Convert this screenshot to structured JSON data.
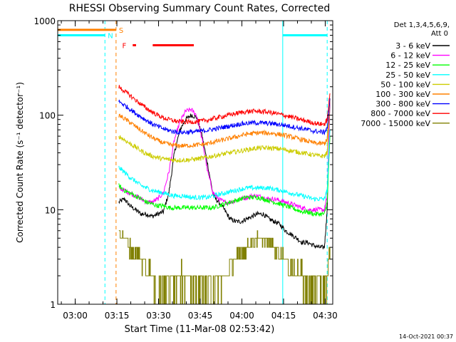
{
  "chart_data": {
    "type": "line",
    "title": "RHESSI Observing Summary Count Rates, Corrected",
    "xlabel": "Start Time (11-Mar-08 02:53:42)",
    "ylabel": "Corrected Count Rate (s⁻¹ detector⁻¹)",
    "yscale": "log",
    "ylim": [
      1,
      1000
    ],
    "xlim_minutes_from_start": [
      0,
      99
    ],
    "x_unit": "minutes after 02:53:42",
    "x_ticks": [
      {
        "label": "03:00",
        "t": 6.3
      },
      {
        "label": "03:15",
        "t": 21.3
      },
      {
        "label": "03:30",
        "t": 36.3
      },
      {
        "label": "03:45",
        "t": 51.3
      },
      {
        "label": "04:00",
        "t": 66.3
      },
      {
        "label": "04:15",
        "t": 81.3
      },
      {
        "label": "04:30",
        "t": 96.3
      }
    ],
    "y_ticks": [
      {
        "label": "1",
        "v": 1
      },
      {
        "label": "10",
        "v": 10
      },
      {
        "label": "100",
        "v": 100
      },
      {
        "label": "1000",
        "v": 1000
      }
    ],
    "legend": {
      "placement": "top-right",
      "header": [
        "Det 1,3,4,5,6,9,",
        "Att 0"
      ]
    },
    "series": [
      {
        "name": "3 - 6 keV",
        "color": "#000000",
        "x": [
          22,
          24,
          26,
          28,
          30,
          32,
          34,
          36,
          38,
          40,
          42,
          44,
          46,
          48,
          50,
          52,
          54,
          56,
          58,
          60,
          62,
          64,
          66,
          68,
          70,
          72,
          74,
          76,
          78,
          80,
          82,
          84,
          86,
          88,
          90,
          92,
          94,
          96,
          97,
          98
        ],
        "y": [
          12,
          13,
          11,
          10,
          9,
          9,
          8.5,
          9,
          9.5,
          15,
          40,
          70,
          90,
          100,
          95,
          60,
          30,
          14,
          12,
          10,
          8,
          7.5,
          7.5,
          8,
          8.5,
          9,
          9,
          8,
          7.5,
          7,
          6,
          5.5,
          5,
          4.5,
          4.5,
          4.2,
          4,
          4,
          10,
          150
        ]
      },
      {
        "name": "6 - 12 keV",
        "color": "#ff00ff",
        "x": [
          22,
          24,
          26,
          28,
          30,
          32,
          34,
          36,
          38,
          40,
          42,
          44,
          46,
          48,
          50,
          52,
          54,
          56,
          58,
          60,
          62,
          64,
          66,
          68,
          70,
          72,
          74,
          76,
          78,
          80,
          82,
          84,
          86,
          88,
          90,
          92,
          94,
          96,
          97,
          98
        ],
        "y": [
          17,
          16,
          15,
          14,
          13,
          12,
          12,
          13,
          15,
          25,
          55,
          85,
          110,
          115,
          100,
          55,
          25,
          15,
          13,
          12,
          12,
          12.5,
          13,
          13.5,
          14,
          14,
          13.5,
          13,
          13,
          12.5,
          12,
          11.5,
          11,
          10.5,
          10,
          10,
          10,
          10,
          14,
          150
        ]
      },
      {
        "name": "12 - 25 keV",
        "color": "#00ff00",
        "x": [
          22,
          24,
          26,
          28,
          30,
          32,
          34,
          36,
          38,
          40,
          42,
          44,
          46,
          48,
          50,
          52,
          54,
          56,
          58,
          60,
          62,
          64,
          66,
          68,
          70,
          72,
          74,
          76,
          78,
          80,
          82,
          84,
          86,
          88,
          90,
          92,
          94,
          96,
          97,
          98
        ],
        "y": [
          18,
          16,
          15,
          14,
          13,
          12,
          11.5,
          11,
          11,
          10.5,
          10.5,
          10.5,
          10.5,
          10.5,
          10.5,
          10.5,
          10.5,
          10.5,
          11,
          11.5,
          12,
          12.5,
          13,
          13.5,
          13.5,
          13.5,
          13,
          12.5,
          12,
          11.5,
          11,
          10.5,
          10,
          9.5,
          9.5,
          9,
          9,
          9,
          12,
          60
        ]
      },
      {
        "name": "25 - 50 keV",
        "color": "#00ffff",
        "x": [
          22,
          24,
          26,
          28,
          30,
          32,
          34,
          36,
          38,
          40,
          42,
          44,
          46,
          48,
          50,
          52,
          54,
          56,
          58,
          60,
          62,
          64,
          66,
          68,
          70,
          72,
          74,
          76,
          78,
          80,
          82,
          84,
          86,
          88,
          90,
          92,
          94,
          96,
          97,
          98
        ],
        "y": [
          28,
          25,
          22,
          20,
          18,
          17,
          16,
          15.5,
          15,
          14.5,
          14,
          14,
          14,
          13.5,
          13.5,
          13.5,
          13.5,
          14,
          14.5,
          15,
          15.5,
          16,
          16.5,
          17,
          17,
          17,
          17,
          17,
          16.5,
          16,
          15.5,
          15,
          14.5,
          14,
          13.5,
          13,
          13,
          13,
          16,
          70
        ]
      },
      {
        "name": "50 - 100 keV",
        "color": "#cccc00",
        "x": [
          22,
          24,
          26,
          28,
          30,
          32,
          34,
          36,
          38,
          40,
          42,
          44,
          46,
          48,
          50,
          52,
          54,
          56,
          58,
          60,
          62,
          64,
          66,
          68,
          70,
          72,
          74,
          76,
          78,
          80,
          82,
          84,
          86,
          88,
          90,
          92,
          94,
          96,
          97,
          98
        ],
        "y": [
          60,
          55,
          50,
          46,
          42,
          39,
          37,
          35.5,
          34.5,
          34,
          33.5,
          33.5,
          33.5,
          34,
          34.5,
          35,
          36,
          37,
          38,
          39,
          40,
          41,
          42,
          43,
          44,
          45,
          45,
          45,
          44.5,
          44,
          43,
          42,
          41,
          40,
          39,
          38,
          37,
          37,
          40,
          150
        ]
      },
      {
        "name": "100 - 300 keV",
        "color": "#ff8000",
        "x": [
          22,
          24,
          26,
          28,
          30,
          32,
          34,
          36,
          38,
          40,
          42,
          44,
          46,
          48,
          50,
          52,
          54,
          56,
          58,
          60,
          62,
          64,
          66,
          68,
          70,
          72,
          74,
          76,
          78,
          80,
          82,
          84,
          86,
          88,
          90,
          92,
          94,
          96,
          97,
          98
        ],
        "y": [
          100,
          92,
          84,
          76,
          69,
          63,
          58,
          54,
          51,
          49,
          48,
          47.5,
          47.5,
          48,
          48.5,
          49,
          50,
          52,
          53.5,
          55,
          57,
          59,
          61,
          63,
          64,
          65,
          65,
          64.5,
          64,
          62.5,
          61,
          59,
          57,
          55,
          53,
          51,
          50,
          50,
          55,
          150
        ]
      },
      {
        "name": "300 - 800 keV",
        "color": "#0000ff",
        "x": [
          22,
          24,
          26,
          28,
          30,
          32,
          34,
          36,
          38,
          40,
          42,
          44,
          46,
          48,
          50,
          52,
          54,
          56,
          58,
          60,
          62,
          64,
          66,
          68,
          70,
          72,
          74,
          76,
          78,
          80,
          82,
          84,
          86,
          88,
          90,
          92,
          94,
          96,
          97,
          98
        ],
        "y": [
          140,
          128,
          116,
          105,
          96,
          88,
          81,
          76,
          72,
          69,
          67,
          66,
          66,
          66.5,
          67,
          68,
          69.5,
          71,
          73,
          75,
          77,
          79,
          81,
          82,
          83,
          83,
          82.5,
          82,
          81,
          79.5,
          78,
          76,
          74,
          72,
          70,
          68,
          67,
          66,
          72,
          150
        ]
      },
      {
        "name": "800 - 7000 keV",
        "color": "#ff0000",
        "x": [
          22,
          24,
          26,
          28,
          30,
          32,
          34,
          36,
          38,
          40,
          42,
          44,
          46,
          48,
          50,
          52,
          54,
          56,
          58,
          60,
          62,
          64,
          66,
          68,
          70,
          72,
          74,
          76,
          78,
          80,
          82,
          84,
          86,
          88,
          90,
          92,
          94,
          96,
          97,
          98
        ],
        "y": [
          200,
          180,
          162,
          145,
          130,
          118,
          108,
          100,
          94,
          90,
          87,
          85.5,
          85,
          85,
          85.5,
          87,
          89,
          92,
          95,
          98,
          101,
          104,
          107,
          109,
          110,
          110,
          109,
          107.5,
          105,
          102,
          99,
          96,
          92,
          89,
          86,
          83,
          81,
          80,
          90,
          170
        ]
      },
      {
        "name": "7000 - 15000 keV",
        "color": "#808000",
        "x": [
          22,
          24,
          26,
          28,
          30,
          32,
          34,
          36,
          38,
          40,
          42,
          44,
          46,
          48,
          50,
          52,
          54,
          56,
          58,
          60,
          62,
          64,
          66,
          68,
          70,
          72,
          74,
          76,
          78,
          80,
          82,
          84,
          86,
          88,
          90,
          92,
          94,
          96,
          97,
          98
        ],
        "y": [
          6,
          5,
          4,
          3.5,
          3,
          2.5,
          2,
          1.5,
          1.5,
          1.5,
          2,
          2,
          2,
          1.5,
          1.5,
          1.5,
          1.5,
          1.5,
          2,
          2,
          2.5,
          3,
          3.5,
          4,
          4.5,
          5,
          5,
          4.5,
          4,
          3.5,
          3,
          2.5,
          2,
          2,
          1.5,
          1.5,
          1.5,
          1.5,
          2,
          4
        ]
      }
    ],
    "flags": [
      {
        "name": "S",
        "color": "#ff8000",
        "y_level": 800,
        "segments": [
          [
            0,
            21
          ]
        ]
      },
      {
        "name": "N",
        "color": "#00ffff",
        "y_level": 700,
        "segments": [
          [
            0,
            17
          ],
          [
            81,
            97
          ]
        ]
      },
      {
        "name": "F",
        "color": "#ff0000",
        "y_level": 550,
        "segments": [
          [
            27,
            28.2
          ],
          [
            34.2,
            49
          ]
        ]
      }
    ],
    "vlines": [
      {
        "t": 17,
        "color": "#00ffff",
        "style": "dashed"
      },
      {
        "t": 21,
        "color": "#ff8000",
        "style": "dashed"
      },
      {
        "t": 81,
        "color": "#00ffff",
        "style": "solid"
      },
      {
        "t": 97,
        "color": "#00ffff",
        "style": "dashed"
      }
    ],
    "timestamp": "14-Oct-2021 00:37"
  }
}
